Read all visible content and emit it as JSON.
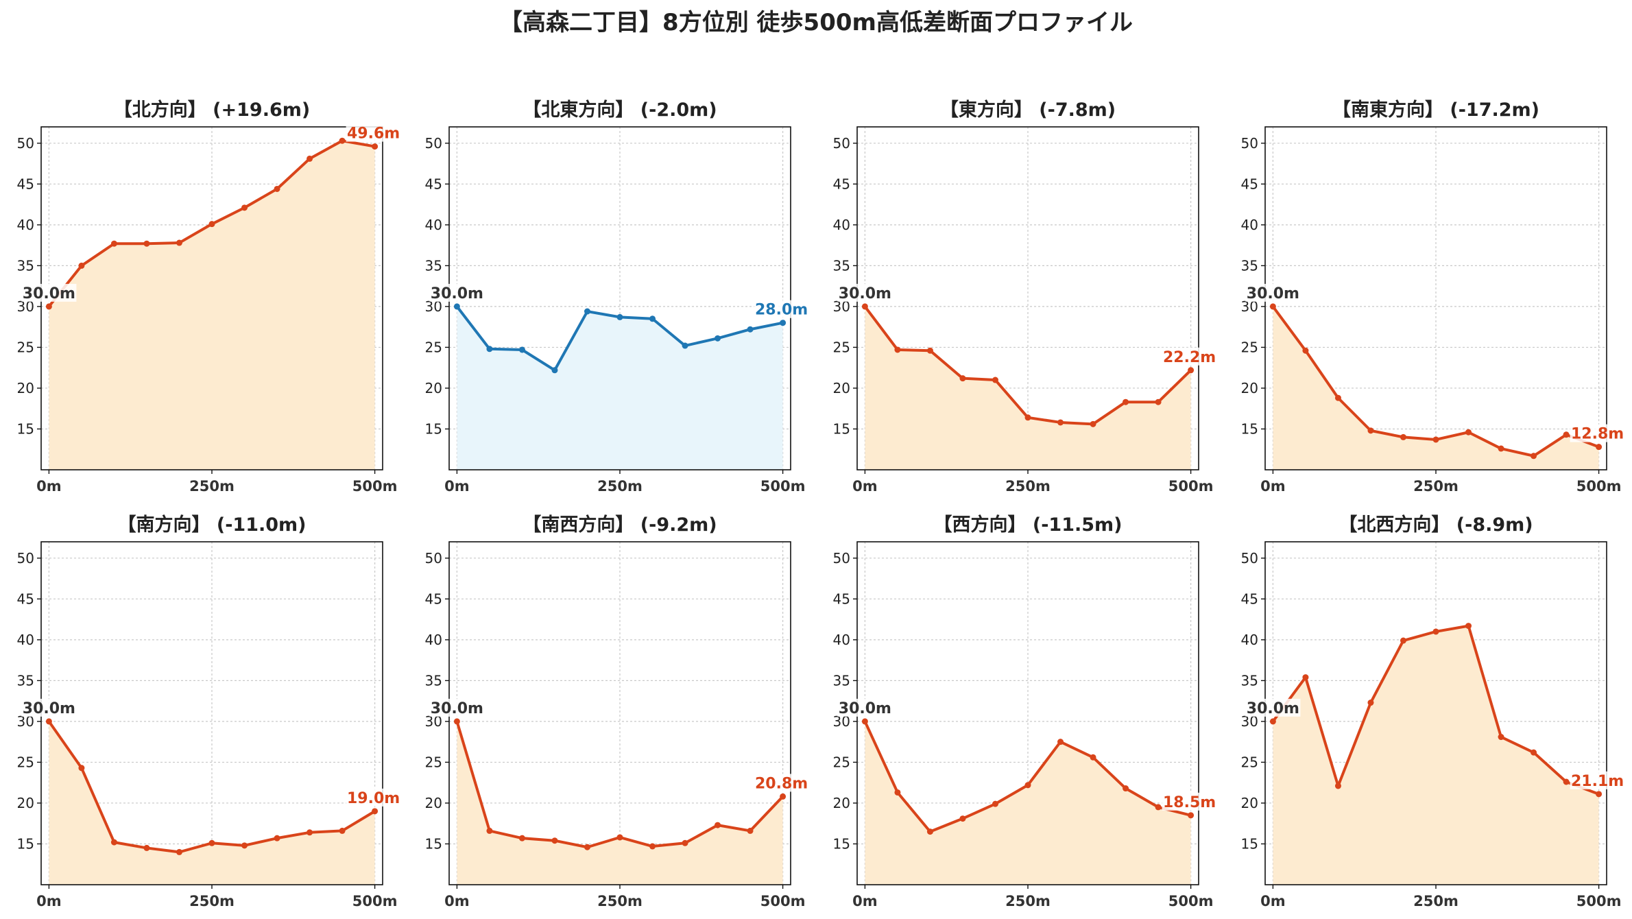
{
  "title": "【高森二丁目】8方位別 徒歩500m高低差断面プロファイル",
  "colors": {
    "down_line": "#d9441a",
    "down_fill": "#fdebd0",
    "up_line": "#1f77b4",
    "up_fill": "#e8f5fb",
    "label_neutral": "#333333"
  },
  "chart_data": [
    {
      "type": "area",
      "title": "【北方向】 (+19.6m)",
      "x": [
        0,
        50,
        100,
        150,
        200,
        250,
        300,
        350,
        400,
        450,
        500
      ],
      "values": [
        30.0,
        35.0,
        37.7,
        37.7,
        37.8,
        40.1,
        42.1,
        44.4,
        48.1,
        50.3,
        49.6
      ],
      "start_label": "30.0m",
      "end_label": "49.6m",
      "color_scheme": "down",
      "xticks": [
        "0m",
        "250m",
        "500m"
      ],
      "xlim": [
        -12,
        512
      ],
      "ylim": [
        10,
        52
      ],
      "yticks": [
        15,
        20,
        25,
        30,
        35,
        40,
        45,
        50
      ],
      "grid": true
    },
    {
      "type": "area",
      "title": "【北東方向】 (-2.0m)",
      "x": [
        0,
        50,
        100,
        150,
        200,
        250,
        300,
        350,
        400,
        450,
        500
      ],
      "values": [
        30.0,
        24.8,
        24.7,
        22.2,
        29.4,
        28.7,
        28.5,
        25.2,
        26.1,
        27.2,
        28.0
      ],
      "start_label": "30.0m",
      "end_label": "28.0m",
      "color_scheme": "up",
      "xticks": [
        "0m",
        "250m",
        "500m"
      ],
      "xlim": [
        -12,
        512
      ],
      "ylim": [
        10,
        52
      ],
      "yticks": [
        15,
        20,
        25,
        30,
        35,
        40,
        45,
        50
      ],
      "grid": true
    },
    {
      "type": "area",
      "title": "【東方向】 (-7.8m)",
      "x": [
        0,
        50,
        100,
        150,
        200,
        250,
        300,
        350,
        400,
        450,
        500
      ],
      "values": [
        30.0,
        24.7,
        24.6,
        21.2,
        21.0,
        16.4,
        15.8,
        15.6,
        18.3,
        18.3,
        22.2
      ],
      "start_label": "30.0m",
      "end_label": "22.2m",
      "color_scheme": "down",
      "xticks": [
        "0m",
        "250m",
        "500m"
      ],
      "xlim": [
        -12,
        512
      ],
      "ylim": [
        10,
        52
      ],
      "yticks": [
        15,
        20,
        25,
        30,
        35,
        40,
        45,
        50
      ],
      "grid": true
    },
    {
      "type": "area",
      "title": "【南東方向】 (-17.2m)",
      "x": [
        0,
        50,
        100,
        150,
        200,
        250,
        300,
        350,
        400,
        450,
        500
      ],
      "values": [
        30.0,
        24.6,
        18.8,
        14.8,
        14.0,
        13.7,
        14.6,
        12.6,
        11.7,
        14.3,
        12.8
      ],
      "start_label": "30.0m",
      "end_label": "12.8m",
      "color_scheme": "down",
      "xticks": [
        "0m",
        "250m",
        "500m"
      ],
      "xlim": [
        -12,
        512
      ],
      "ylim": [
        10,
        52
      ],
      "yticks": [
        15,
        20,
        25,
        30,
        35,
        40,
        45,
        50
      ],
      "grid": true
    },
    {
      "type": "area",
      "title": "【南方向】 (-11.0m)",
      "x": [
        0,
        50,
        100,
        150,
        200,
        250,
        300,
        350,
        400,
        450,
        500
      ],
      "values": [
        30.0,
        24.3,
        15.2,
        14.5,
        14.0,
        15.1,
        14.8,
        15.7,
        16.4,
        16.6,
        19.0
      ],
      "start_label": "30.0m",
      "end_label": "19.0m",
      "color_scheme": "down",
      "xticks": [
        "0m",
        "250m",
        "500m"
      ],
      "xlim": [
        -12,
        512
      ],
      "ylim": [
        10,
        52
      ],
      "yticks": [
        15,
        20,
        25,
        30,
        35,
        40,
        45,
        50
      ],
      "grid": true
    },
    {
      "type": "area",
      "title": "【南西方向】 (-9.2m)",
      "x": [
        0,
        50,
        100,
        150,
        200,
        250,
        300,
        350,
        400,
        450,
        500
      ],
      "values": [
        30.0,
        16.6,
        15.7,
        15.4,
        14.6,
        15.8,
        14.7,
        15.1,
        17.3,
        16.6,
        20.8
      ],
      "start_label": "30.0m",
      "end_label": "20.8m",
      "color_scheme": "down",
      "xticks": [
        "0m",
        "250m",
        "500m"
      ],
      "xlim": [
        -12,
        512
      ],
      "ylim": [
        10,
        52
      ],
      "yticks": [
        15,
        20,
        25,
        30,
        35,
        40,
        45,
        50
      ],
      "grid": true
    },
    {
      "type": "area",
      "title": "【西方向】 (-11.5m)",
      "x": [
        0,
        50,
        100,
        150,
        200,
        250,
        300,
        350,
        400,
        450,
        500
      ],
      "values": [
        30.0,
        21.3,
        16.5,
        18.1,
        19.9,
        22.2,
        27.5,
        25.6,
        21.8,
        19.5,
        18.5
      ],
      "start_label": "30.0m",
      "end_label": "18.5m",
      "color_scheme": "down",
      "xticks": [
        "0m",
        "250m",
        "500m"
      ],
      "xlim": [
        -12,
        512
      ],
      "ylim": [
        10,
        52
      ],
      "yticks": [
        15,
        20,
        25,
        30,
        35,
        40,
        45,
        50
      ],
      "grid": true
    },
    {
      "type": "area",
      "title": "【北西方向】 (-8.9m)",
      "x": [
        0,
        50,
        100,
        150,
        200,
        250,
        300,
        350,
        400,
        450,
        500
      ],
      "values": [
        30.0,
        35.4,
        22.1,
        32.3,
        39.9,
        41.0,
        41.7,
        28.1,
        26.2,
        22.6,
        21.1
      ],
      "start_label": "30.0m",
      "end_label": "21.1m",
      "color_scheme": "down",
      "xticks": [
        "0m",
        "250m",
        "500m"
      ],
      "xlim": [
        -12,
        512
      ],
      "ylim": [
        10,
        52
      ],
      "yticks": [
        15,
        20,
        25,
        30,
        35,
        40,
        45,
        50
      ],
      "grid": true
    }
  ]
}
